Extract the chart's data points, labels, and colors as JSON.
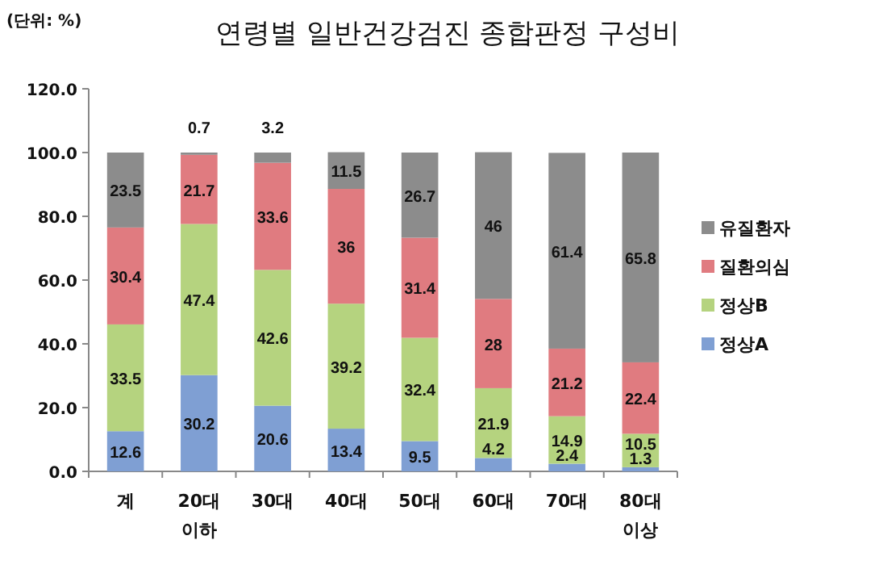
{
  "chart_data": {
    "type": "bar",
    "stacked": true,
    "title": "연령별 일반건강검진 종합판정 구성비",
    "ylabel": "(단위: %)",
    "categories": [
      "계",
      "20대\n이하",
      "30대",
      "40대",
      "50대",
      "60대",
      "70대",
      "80대\n이상"
    ],
    "series": [
      {
        "name": "정상A",
        "color": "#7f9fd3",
        "values": [
          12.6,
          30.2,
          20.6,
          13.4,
          9.5,
          4.2,
          2.4,
          1.3
        ]
      },
      {
        "name": "정상B",
        "color": "#b5d37f",
        "values": [
          33.5,
          47.4,
          42.6,
          39.2,
          32.4,
          21.9,
          14.9,
          10.5
        ]
      },
      {
        "name": "질환의심",
        "color": "#e07b80",
        "values": [
          30.4,
          21.7,
          33.6,
          36,
          31.4,
          28,
          21.2,
          22.4
        ]
      },
      {
        "name": "유질환자",
        "color": "#8c8c8c",
        "values": [
          23.5,
          0.7,
          3.2,
          11.5,
          26.7,
          46,
          61.4,
          65.8
        ]
      }
    ],
    "ylim": [
      0,
      120
    ],
    "yticks": [
      {
        "value": 0,
        "label": "0.0"
      },
      {
        "value": 20,
        "label": "20.0"
      },
      {
        "value": 40,
        "label": "40.0"
      },
      {
        "value": 60,
        "label": "60.0"
      },
      {
        "value": 80,
        "label": "80.0"
      },
      {
        "value": 100,
        "label": "100.0"
      },
      {
        "value": 120,
        "label": "120.0"
      }
    ],
    "data_labels": true,
    "legend": "right",
    "grid": false
  }
}
